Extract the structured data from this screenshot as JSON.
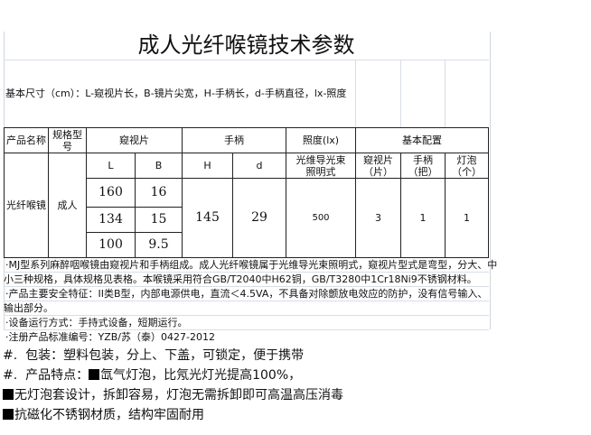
{
  "title": "成人光纤喉镜技术参数",
  "dims": "基本尺寸（cm）：L-窥视片长，B-镜片尖宽，H-手柄长，d-手柄直径，lx-照度",
  "table": {
    "headers": {
      "name": "产品名称",
      "model": "规格型号",
      "blade": "窥视片",
      "handle": "手柄",
      "lux": "照度(lx)",
      "config": "基本配置"
    },
    "sub": {
      "L": "L",
      "B": "B",
      "H": "H",
      "d": "d",
      "lux": "光维导光束照明式",
      "blades": "窥视片（片）",
      "handles": "手柄（把）",
      "bulbs": "灯泡（个）"
    },
    "product": "光纤喉镜",
    "model": "成人",
    "rows": [
      {
        "L": "160",
        "B": "16"
      },
      {
        "L": "134",
        "B": "15"
      },
      {
        "L": "100",
        "B": "9.5"
      }
    ],
    "H": "145",
    "d": "29",
    "lux": "500",
    "blades": "3",
    "handles": "1",
    "bulbs": "1"
  },
  "notes": [
    "·MJ型系列麻醉咽喉镜由窥视片和手柄组成。成人光纤喉镜属于光维导光束照明式，窥视片型式是弯型，分大、中",
    "小三种规格，具体规格见表格。本喉镜采用符合GB/T2040中H62铜，GB/T3280中1Cr18Ni9不锈钢材料。",
    "·产品主要安全特征：II类B型，内部电源供电，直流＜4.5VA，不具备对除颤放电效应的防护，没有信号输入、",
    "输出部分。",
    "·设备运行方式：手持式设备，短期运行。",
    "·注册产品标准编号：YZB/苏（泰）0427-2012"
  ],
  "features": [
    {
      "bullet": "#.",
      "text": "包装：塑料包装，分上、下盖，可锁定，便于携带"
    },
    {
      "bullet": "#.",
      "text": "产品特点：",
      "box_text": "氙气灯泡，比氖光灯光提高100%，"
    },
    {
      "box_text": "无灯泡套设计，拆卸容易，灯泡无需拆卸即可高温高压消毒"
    },
    {
      "box_text": "抗磁化不锈钢材质，结构牢固耐用"
    }
  ]
}
